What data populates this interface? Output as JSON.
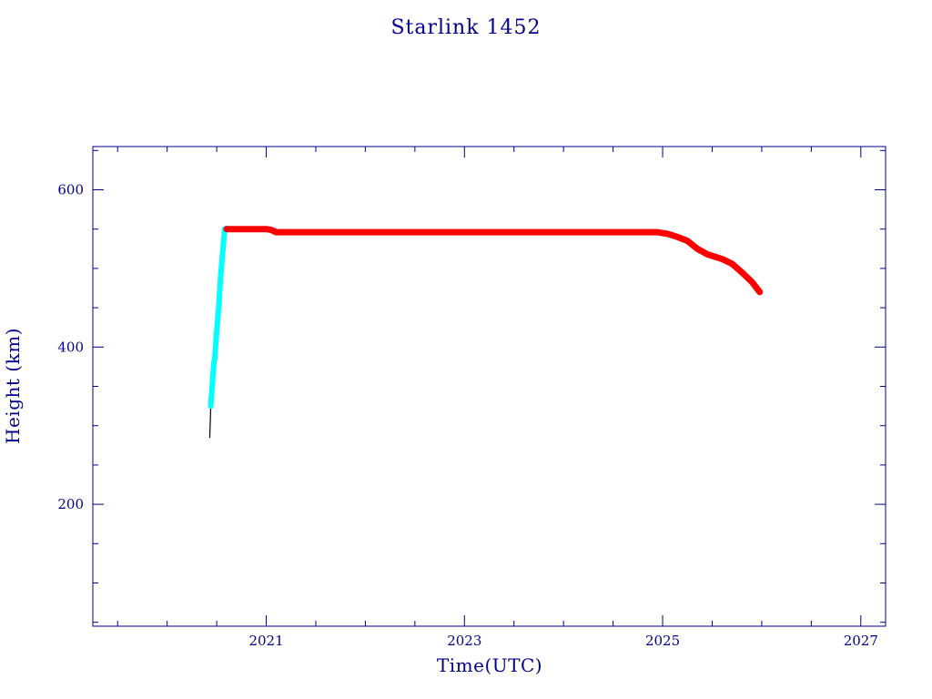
{
  "chart_data": {
    "type": "line",
    "title": "Starlink 1452",
    "xlabel": "Time(UTC)",
    "ylabel": "Height (km)",
    "xlim": [
      2019.25,
      2027.25
    ],
    "ylim": [
      45,
      655
    ],
    "x_ticks": [
      2021,
      2023,
      2025,
      2027
    ],
    "y_ticks": [
      200,
      400,
      600
    ],
    "grid": false,
    "colors": {
      "axes": "#00008b",
      "insertion": "#000000",
      "raising": "#00ffff",
      "operational": "#ff0000"
    },
    "series": [
      {
        "color": "#000000",
        "points": [
          [
            2020.43,
            285
          ],
          [
            2020.435,
            305
          ],
          [
            2020.44,
            325
          ]
        ]
      },
      {
        "color": "#00ffff",
        "points": [
          [
            2020.44,
            325
          ],
          [
            2020.46,
            360
          ],
          [
            2020.47,
            378
          ],
          [
            2020.48,
            385
          ],
          [
            2020.5,
            420
          ],
          [
            2020.52,
            450
          ],
          [
            2020.54,
            490
          ],
          [
            2020.56,
            520
          ],
          [
            2020.58,
            550
          ],
          [
            2020.6,
            551
          ]
        ]
      },
      {
        "color": "#ff0000",
        "points": [
          [
            2020.6,
            550
          ],
          [
            2020.8,
            550
          ],
          [
            2021.0,
            550
          ],
          [
            2021.05,
            549
          ],
          [
            2021.1,
            546
          ],
          [
            2021.5,
            546
          ],
          [
            2022.0,
            546
          ],
          [
            2023.0,
            546
          ],
          [
            2024.0,
            546
          ],
          [
            2024.95,
            546
          ],
          [
            2025.05,
            544
          ],
          [
            2025.15,
            540
          ],
          [
            2025.25,
            535
          ],
          [
            2025.35,
            525
          ],
          [
            2025.45,
            518
          ],
          [
            2025.6,
            512
          ],
          [
            2025.7,
            506
          ],
          [
            2025.8,
            495
          ],
          [
            2025.9,
            483
          ],
          [
            2025.98,
            470
          ]
        ]
      }
    ]
  }
}
